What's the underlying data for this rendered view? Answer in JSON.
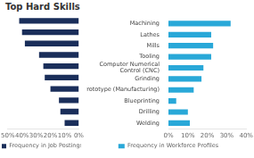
{
  "chart_data": [
    {
      "type": "bar",
      "title": "Top Hard Skills",
      "orientation": "horizontal",
      "categories": [
        "Machining",
        "Lathes",
        "Mills",
        "Tooling",
        "Computer Numerical\nControl (CNC)",
        "Grinding",
        "Prototype (Manufacturing)",
        "Blueprinting",
        "Drilling",
        "Welding"
      ],
      "series": [
        {
          "name": "Frequency in Job Postings",
          "color": "#1a2e5a",
          "values": [
            42,
            40,
            38,
            28,
            25,
            24,
            20,
            14,
            13,
            10
          ]
        }
      ],
      "xlim": [
        50,
        0
      ],
      "xticks": [
        {
          "value": 50,
          "label": "50%"
        },
        {
          "value": 40,
          "label": "40%"
        },
        {
          "value": 30,
          "label": "30%"
        },
        {
          "value": 20,
          "label": "20%"
        },
        {
          "value": 10,
          "label": "10%"
        },
        {
          "value": 0,
          "label": "0%"
        }
      ],
      "grid": false,
      "legend": "bottom"
    },
    {
      "type": "bar",
      "orientation": "horizontal",
      "categories": [
        "Machining",
        "Lathes",
        "Mills",
        "Tooling",
        "Computer Numerical\nControl (CNC)",
        "Grinding",
        "Prototype (Manufacturing)",
        "Blueprinting",
        "Drilling",
        "Welding"
      ],
      "series": [
        {
          "name": "Frequency in Workforce Profiles",
          "color": "#29a8d8",
          "values": [
            32,
            22,
            23,
            22,
            18,
            17,
            13,
            4,
            10,
            11
          ]
        }
      ],
      "xlim": [
        0,
        40
      ],
      "xticks": [
        {
          "value": 0,
          "label": "0%"
        },
        {
          "value": 10,
          "label": "10%"
        },
        {
          "value": 20,
          "label": "20%"
        },
        {
          "value": 30,
          "label": "30%"
        },
        {
          "value": 40,
          "label": "40%"
        }
      ],
      "grid": false,
      "legend": "bottom"
    }
  ]
}
